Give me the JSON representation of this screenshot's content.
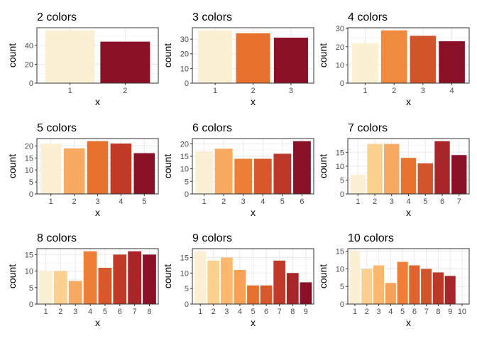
{
  "chart_data": [
    {
      "type": "bar",
      "title": "2 colors",
      "xlabel": "x",
      "ylabel": "count",
      "categories": [
        "1",
        "2"
      ],
      "values": [
        56,
        44
      ],
      "colors": [
        "#FBF0D4",
        "#8A1027"
      ],
      "ylim": [
        0,
        58.8
      ],
      "yticks": [
        0,
        20,
        40
      ],
      "grid": true
    },
    {
      "type": "bar",
      "title": "3 colors",
      "xlabel": "x",
      "ylabel": "count",
      "categories": [
        "1",
        "2",
        "3"
      ],
      "values": [
        36,
        34,
        31
      ],
      "colors": [
        "#FBF0D4",
        "#E6712F",
        "#8A1027"
      ],
      "ylim": [
        0,
        37.8
      ],
      "yticks": [
        0,
        10,
        20,
        30
      ],
      "grid": true
    },
    {
      "type": "bar",
      "title": "4 colors",
      "xlabel": "x",
      "ylabel": "count",
      "categories": [
        "1",
        "2",
        "3",
        "4"
      ],
      "values": [
        22,
        29,
        26,
        23
      ],
      "colors": [
        "#FBF0D4",
        "#F08A3E",
        "#D1542B",
        "#8A1027"
      ],
      "ylim": [
        0,
        30.45
      ],
      "yticks": [
        0,
        10,
        20,
        30
      ],
      "grid": true
    },
    {
      "type": "bar",
      "title": "5 colors",
      "xlabel": "x",
      "ylabel": "count",
      "categories": [
        "1",
        "2",
        "3",
        "4",
        "5"
      ],
      "values": [
        21,
        19,
        22,
        21,
        17
      ],
      "colors": [
        "#FBF0D4",
        "#F8AA62",
        "#E6712F",
        "#C13A27",
        "#8A1027"
      ],
      "ylim": [
        0,
        23.1
      ],
      "yticks": [
        0,
        5,
        10,
        15,
        20
      ],
      "grid": true
    },
    {
      "type": "bar",
      "title": "6 colors",
      "xlabel": "x",
      "ylabel": "count",
      "categories": [
        "1",
        "2",
        "3",
        "4",
        "5",
        "6"
      ],
      "values": [
        17,
        18,
        14,
        14,
        16,
        21
      ],
      "colors": [
        "#FBF0D4",
        "#F8AA62",
        "#EE7F38",
        "#D8582C",
        "#BB3727",
        "#8A1027"
      ],
      "ylim": [
        0,
        22.05
      ],
      "yticks": [
        0,
        5,
        10,
        15,
        20
      ],
      "grid": true
    },
    {
      "type": "bar",
      "title": "7 colors",
      "xlabel": "x",
      "ylabel": "count",
      "categories": [
        "1",
        "2",
        "3",
        "4",
        "5",
        "6",
        "7"
      ],
      "values": [
        7,
        18,
        18,
        13,
        11,
        19,
        14
      ],
      "colors": [
        "#FBF0D4",
        "#FCD08E",
        "#F8AA62",
        "#E8732F",
        "#D1542B",
        "#A8262A",
        "#8A1027"
      ],
      "ylim": [
        0,
        19.95
      ],
      "yticks": [
        0,
        5,
        10,
        15
      ],
      "grid": true
    },
    {
      "type": "bar",
      "title": "8 colors",
      "xlabel": "x",
      "ylabel": "count",
      "categories": [
        "1",
        "2",
        "3",
        "4",
        "5",
        "6",
        "7",
        "8"
      ],
      "values": [
        10,
        10,
        7,
        16,
        11,
        15,
        16,
        15
      ],
      "colors": [
        "#FBF0D4",
        "#FCD08E",
        "#F8AA62",
        "#EE7F38",
        "#D8582C",
        "#C13A27",
        "#A8262A",
        "#8A1027"
      ],
      "ylim": [
        0,
        16.8
      ],
      "yticks": [
        0,
        5,
        10,
        15
      ],
      "grid": true
    },
    {
      "type": "bar",
      "title": "9 colors",
      "xlabel": "x",
      "ylabel": "count",
      "categories": [
        "1",
        "2",
        "3",
        "4",
        "5",
        "6",
        "7",
        "8",
        "9"
      ],
      "values": [
        17,
        14,
        15,
        11,
        6,
        6,
        14,
        10,
        7
      ],
      "colors": [
        "#FBF0D4",
        "#FCD08E",
        "#FBB86E",
        "#F8A156",
        "#E6712F",
        "#D8582C",
        "#C13A27",
        "#A8262A",
        "#8A1027"
      ],
      "ylim": [
        0,
        17.85
      ],
      "yticks": [
        0,
        5,
        10,
        15
      ],
      "grid": true
    },
    {
      "type": "bar",
      "title": "10 colors",
      "xlabel": "x",
      "ylabel": "count",
      "categories": [
        "1",
        "2",
        "3",
        "4",
        "5",
        "6",
        "7",
        "8",
        "9",
        "10"
      ],
      "values": [
        15,
        10,
        11,
        6,
        12,
        11,
        10,
        9,
        8,
        0
      ],
      "colors": [
        "#FBF0D4",
        "#FCD08E",
        "#FBB86E",
        "#F8A156",
        "#EE7F38",
        "#E0622E",
        "#D1542B",
        "#BB3727",
        "#A8262A",
        "#8A1027"
      ],
      "ylim": [
        0,
        15.75
      ],
      "yticks": [
        0,
        5,
        10,
        15
      ],
      "grid": true
    }
  ]
}
